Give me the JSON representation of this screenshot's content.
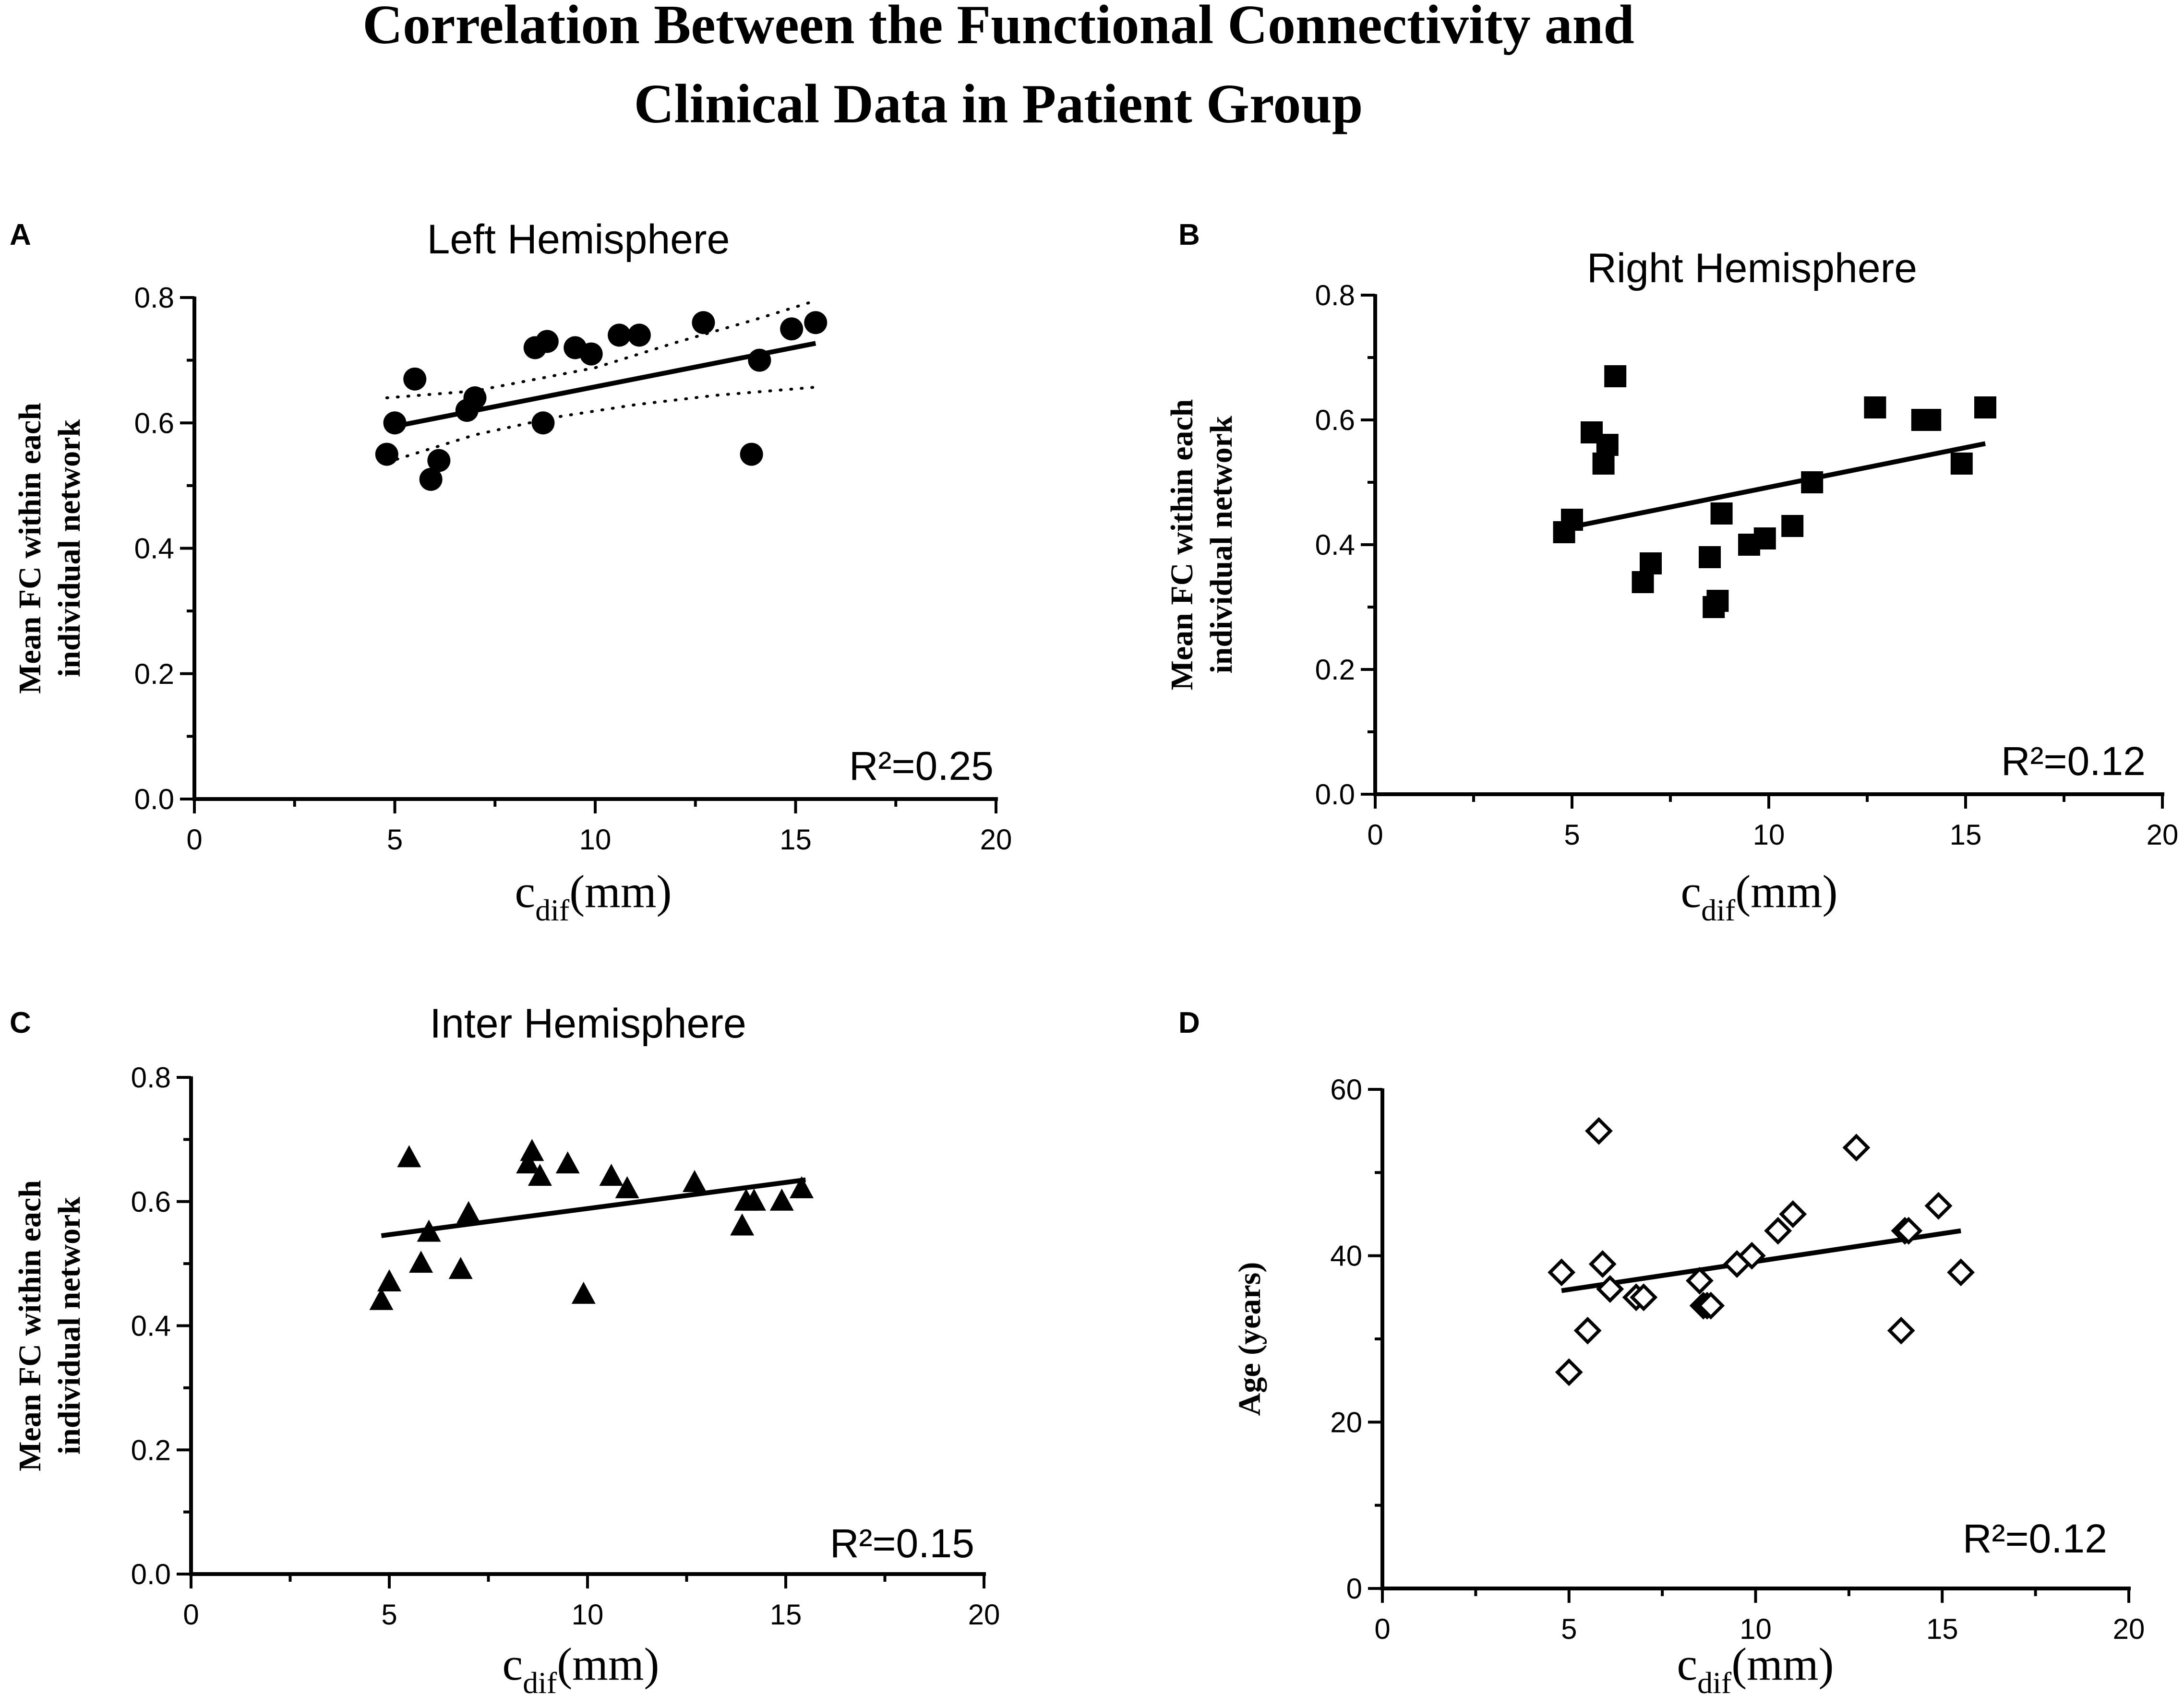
{
  "figure": {
    "title_line1": "Correlation Between the Functional Connectivity and",
    "title_line2": "Clinical Data in Patient Group"
  },
  "chart_data": [
    {
      "panel": "A",
      "type": "scatter",
      "title": "Left Hemisphere",
      "xlabel": "c",
      "xlabel_sub": "dif",
      "xlabel_unit": "(mm)",
      "ylabel": [
        "Mean FC within each",
        "individual network"
      ],
      "xlim": [
        0,
        20
      ],
      "ylim": [
        0,
        0.8
      ],
      "xticks": [
        0,
        5,
        10,
        15,
        20
      ],
      "yticks": [
        0.0,
        0.2,
        0.4,
        0.6,
        0.8
      ],
      "xtick_labels": [
        "0",
        "5",
        "10",
        "15",
        "20"
      ],
      "ytick_labels": [
        "0.0",
        "0.2",
        "0.4",
        "0.6",
        "0.8"
      ],
      "annotation": "R²=0.25",
      "marker": "circle",
      "points": [
        [
          4.8,
          0.55
        ],
        [
          5.0,
          0.6
        ],
        [
          5.5,
          0.67
        ],
        [
          5.9,
          0.51
        ],
        [
          6.1,
          0.54
        ],
        [
          6.8,
          0.62
        ],
        [
          7.0,
          0.64
        ],
        [
          8.5,
          0.72
        ],
        [
          8.7,
          0.6
        ],
        [
          8.8,
          0.73
        ],
        [
          9.5,
          0.72
        ],
        [
          9.9,
          0.71
        ],
        [
          10.6,
          0.74
        ],
        [
          11.1,
          0.74
        ],
        [
          12.7,
          0.76
        ],
        [
          13.9,
          0.55
        ],
        [
          14.1,
          0.7
        ],
        [
          14.9,
          0.75
        ],
        [
          15.5,
          0.76
        ]
      ],
      "fit_line": [
        [
          4.8,
          0.592
        ],
        [
          15.5,
          0.727
        ]
      ],
      "ci_upper": [
        [
          4.8,
          0.64
        ],
        [
          7.0,
          0.651
        ],
        [
          10.0,
          0.688
        ],
        [
          12.0,
          0.728
        ],
        [
          14.0,
          0.765
        ],
        [
          15.5,
          0.795
        ]
      ],
      "ci_lower": [
        [
          4.8,
          0.537
        ],
        [
          7.0,
          0.581
        ],
        [
          9.0,
          0.609
        ],
        [
          11.0,
          0.629
        ],
        [
          13.0,
          0.644
        ],
        [
          15.5,
          0.657
        ]
      ]
    },
    {
      "panel": "B",
      "type": "scatter",
      "title": "Right Hemisphere",
      "xlabel": "c",
      "xlabel_sub": "dif",
      "xlabel_unit": "(mm)",
      "ylabel": [
        "Mean FC within each",
        "individual network"
      ],
      "xlim": [
        0,
        20
      ],
      "ylim": [
        0,
        0.8
      ],
      "xticks": [
        0,
        5,
        10,
        15,
        20
      ],
      "yticks": [
        0.0,
        0.2,
        0.4,
        0.6,
        0.8
      ],
      "xtick_labels": [
        "0",
        "5",
        "10",
        "15",
        "20"
      ],
      "ytick_labels": [
        "0.0",
        "0.2",
        "0.4",
        "0.6",
        "0.8"
      ],
      "annotation": "R²=0.12",
      "marker": "square",
      "points": [
        [
          4.8,
          0.42
        ],
        [
          5.0,
          0.44
        ],
        [
          5.5,
          0.58
        ],
        [
          5.8,
          0.53
        ],
        [
          5.9,
          0.56
        ],
        [
          6.1,
          0.67
        ],
        [
          6.8,
          0.34
        ],
        [
          7.0,
          0.37
        ],
        [
          8.5,
          0.38
        ],
        [
          8.6,
          0.3
        ],
        [
          8.7,
          0.31
        ],
        [
          8.8,
          0.45
        ],
        [
          9.5,
          0.4
        ],
        [
          9.9,
          0.41
        ],
        [
          10.6,
          0.43
        ],
        [
          11.1,
          0.5
        ],
        [
          12.7,
          0.62
        ],
        [
          13.9,
          0.6
        ],
        [
          14.1,
          0.6
        ],
        [
          14.9,
          0.53
        ],
        [
          15.5,
          0.62
        ]
      ],
      "fit_line": [
        [
          4.8,
          0.426
        ],
        [
          15.5,
          0.562
        ]
      ]
    },
    {
      "panel": "C",
      "type": "scatter",
      "title": "Inter Hemisphere",
      "xlabel": "c",
      "xlabel_sub": "dif",
      "xlabel_unit": "(mm)",
      "ylabel": [
        "Mean FC within each",
        "individual network"
      ],
      "xlim": [
        0,
        20
      ],
      "ylim": [
        0,
        0.8
      ],
      "xticks": [
        0,
        5,
        10,
        15,
        20
      ],
      "yticks": [
        0.0,
        0.2,
        0.4,
        0.6,
        0.8
      ],
      "xtick_labels": [
        "0",
        "5",
        "10",
        "15",
        "20"
      ],
      "ytick_labels": [
        "0.0",
        "0.2",
        "0.4",
        "0.6",
        "0.8"
      ],
      "annotation": "R²=0.15",
      "marker": "triangle",
      "points": [
        [
          4.8,
          0.44
        ],
        [
          5.0,
          0.47
        ],
        [
          5.5,
          0.67
        ],
        [
          5.8,
          0.5
        ],
        [
          6.0,
          0.55
        ],
        [
          6.8,
          0.49
        ],
        [
          7.0,
          0.58
        ],
        [
          8.5,
          0.66
        ],
        [
          8.6,
          0.68
        ],
        [
          8.8,
          0.64
        ],
        [
          9.5,
          0.66
        ],
        [
          9.9,
          0.45
        ],
        [
          10.6,
          0.64
        ],
        [
          11.0,
          0.62
        ],
        [
          12.7,
          0.63
        ],
        [
          13.9,
          0.56
        ],
        [
          14.0,
          0.6
        ],
        [
          14.2,
          0.6
        ],
        [
          14.9,
          0.6
        ],
        [
          15.4,
          0.62
        ]
      ],
      "fit_line": [
        [
          4.8,
          0.545
        ],
        [
          15.5,
          0.635
        ]
      ]
    },
    {
      "panel": "D",
      "type": "scatter",
      "title": "",
      "xlabel": "c",
      "xlabel_sub": "dif",
      "xlabel_unit": "(mm)",
      "ylabel": [
        "Age (years)"
      ],
      "xlim": [
        0,
        20
      ],
      "ylim": [
        0,
        60
      ],
      "xticks": [
        0,
        5,
        10,
        15,
        20
      ],
      "yticks": [
        0,
        20,
        40,
        60
      ],
      "xtick_labels": [
        "0",
        "5",
        "10",
        "15",
        "20"
      ],
      "ytick_labels": [
        "0",
        "20",
        "40",
        "60"
      ],
      "annotation": "R²=0.12",
      "marker": "diamond-open",
      "points": [
        [
          4.8,
          38
        ],
        [
          5.0,
          26
        ],
        [
          5.5,
          31
        ],
        [
          5.8,
          55
        ],
        [
          5.9,
          39
        ],
        [
          6.1,
          36
        ],
        [
          6.8,
          35
        ],
        [
          7.0,
          35
        ],
        [
          8.5,
          37
        ],
        [
          8.6,
          34
        ],
        [
          8.7,
          34
        ],
        [
          8.8,
          34
        ],
        [
          9.5,
          39
        ],
        [
          9.9,
          40
        ],
        [
          10.6,
          43
        ],
        [
          11.0,
          45
        ],
        [
          12.7,
          53
        ],
        [
          13.9,
          31
        ],
        [
          14.0,
          43
        ],
        [
          14.1,
          43
        ],
        [
          14.9,
          46
        ],
        [
          15.5,
          38
        ]
      ],
      "fit_line": [
        [
          4.8,
          35.8
        ],
        [
          15.5,
          43.0
        ]
      ]
    }
  ]
}
